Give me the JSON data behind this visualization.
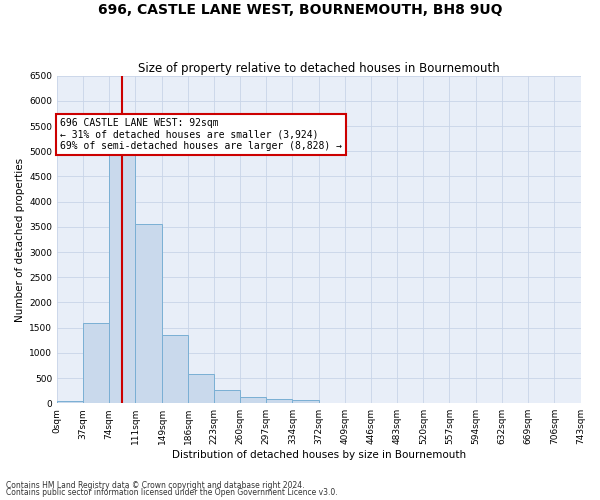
{
  "title": "696, CASTLE LANE WEST, BOURNEMOUTH, BH8 9UQ",
  "subtitle": "Size of property relative to detached houses in Bournemouth",
  "xlabel": "Distribution of detached houses by size in Bournemouth",
  "ylabel": "Number of detached properties",
  "footnote1": "Contains HM Land Registry data © Crown copyright and database right 2024.",
  "footnote2": "Contains public sector information licensed under the Open Government Licence v3.0.",
  "bar_edges": [
    0,
    37,
    74,
    111,
    149,
    186,
    223,
    260,
    297,
    334,
    372,
    409,
    446,
    483,
    520,
    557,
    594,
    632,
    669,
    706,
    743
  ],
  "bar_heights": [
    50,
    1600,
    5100,
    3550,
    1350,
    580,
    270,
    120,
    90,
    60,
    0,
    0,
    0,
    0,
    0,
    0,
    0,
    0,
    0,
    0
  ],
  "bar_color": "#c9d9ec",
  "bar_edge_color": "#7aafd4",
  "highlight_x": 92,
  "xlim": [
    0,
    743
  ],
  "ylim": [
    0,
    6500
  ],
  "yticks": [
    0,
    500,
    1000,
    1500,
    2000,
    2500,
    3000,
    3500,
    4000,
    4500,
    5000,
    5500,
    6000,
    6500
  ],
  "annotation_text": "696 CASTLE LANE WEST: 92sqm\n← 31% of detached houses are smaller (3,924)\n69% of semi-detached houses are larger (8,828) →",
  "annotation_box_color": "#ffffff",
  "annotation_box_edge": "#cc0000",
  "vline_color": "#cc0000",
  "grid_color": "#c8d4e8",
  "background_color": "#e8eef8",
  "title_fontsize": 10,
  "subtitle_fontsize": 8.5,
  "tick_label_fontsize": 6.5,
  "axis_label_fontsize": 7.5,
  "annotation_fontsize": 7,
  "ylabel_fontsize": 7.5
}
